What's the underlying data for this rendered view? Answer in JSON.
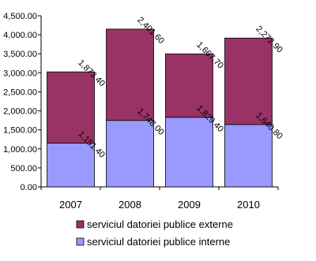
{
  "chart_data": {
    "type": "bar",
    "stacked": true,
    "title": "",
    "xlabel": "",
    "ylabel": "",
    "ylim": [
      0,
      4500
    ],
    "y_ticks": [
      "0.00",
      "500.00",
      "1,000.00",
      "1,500.00",
      "2,000.00",
      "2,500.00",
      "3,000.00",
      "3,500.00",
      "4,000.00",
      "4,500.00"
    ],
    "categories": [
      "2007",
      "2008",
      "2009",
      "2010"
    ],
    "series": [
      {
        "name": "serviciul datoriei publice interne",
        "color": "#9999ff",
        "values": [
          1151.4,
          1748.0,
          1829.4,
          1640.8
        ],
        "labels": [
          "1,151.40",
          "1,748.00",
          "1,829.40",
          "1,640.80"
        ]
      },
      {
        "name": "serviciul datoriei publice externe",
        "color": "#993366",
        "values": [
          1873.4,
          2401.6,
          1667.7,
          2272.9
        ],
        "labels": [
          "1,873.40",
          "2,401.60",
          "1,667.70",
          "2,272.90"
        ]
      }
    ],
    "legend": {
      "placement": "bottom",
      "order": [
        "serviciul datoriei publice externe",
        "serviciul datoriei publice interne"
      ]
    },
    "grid": false
  }
}
